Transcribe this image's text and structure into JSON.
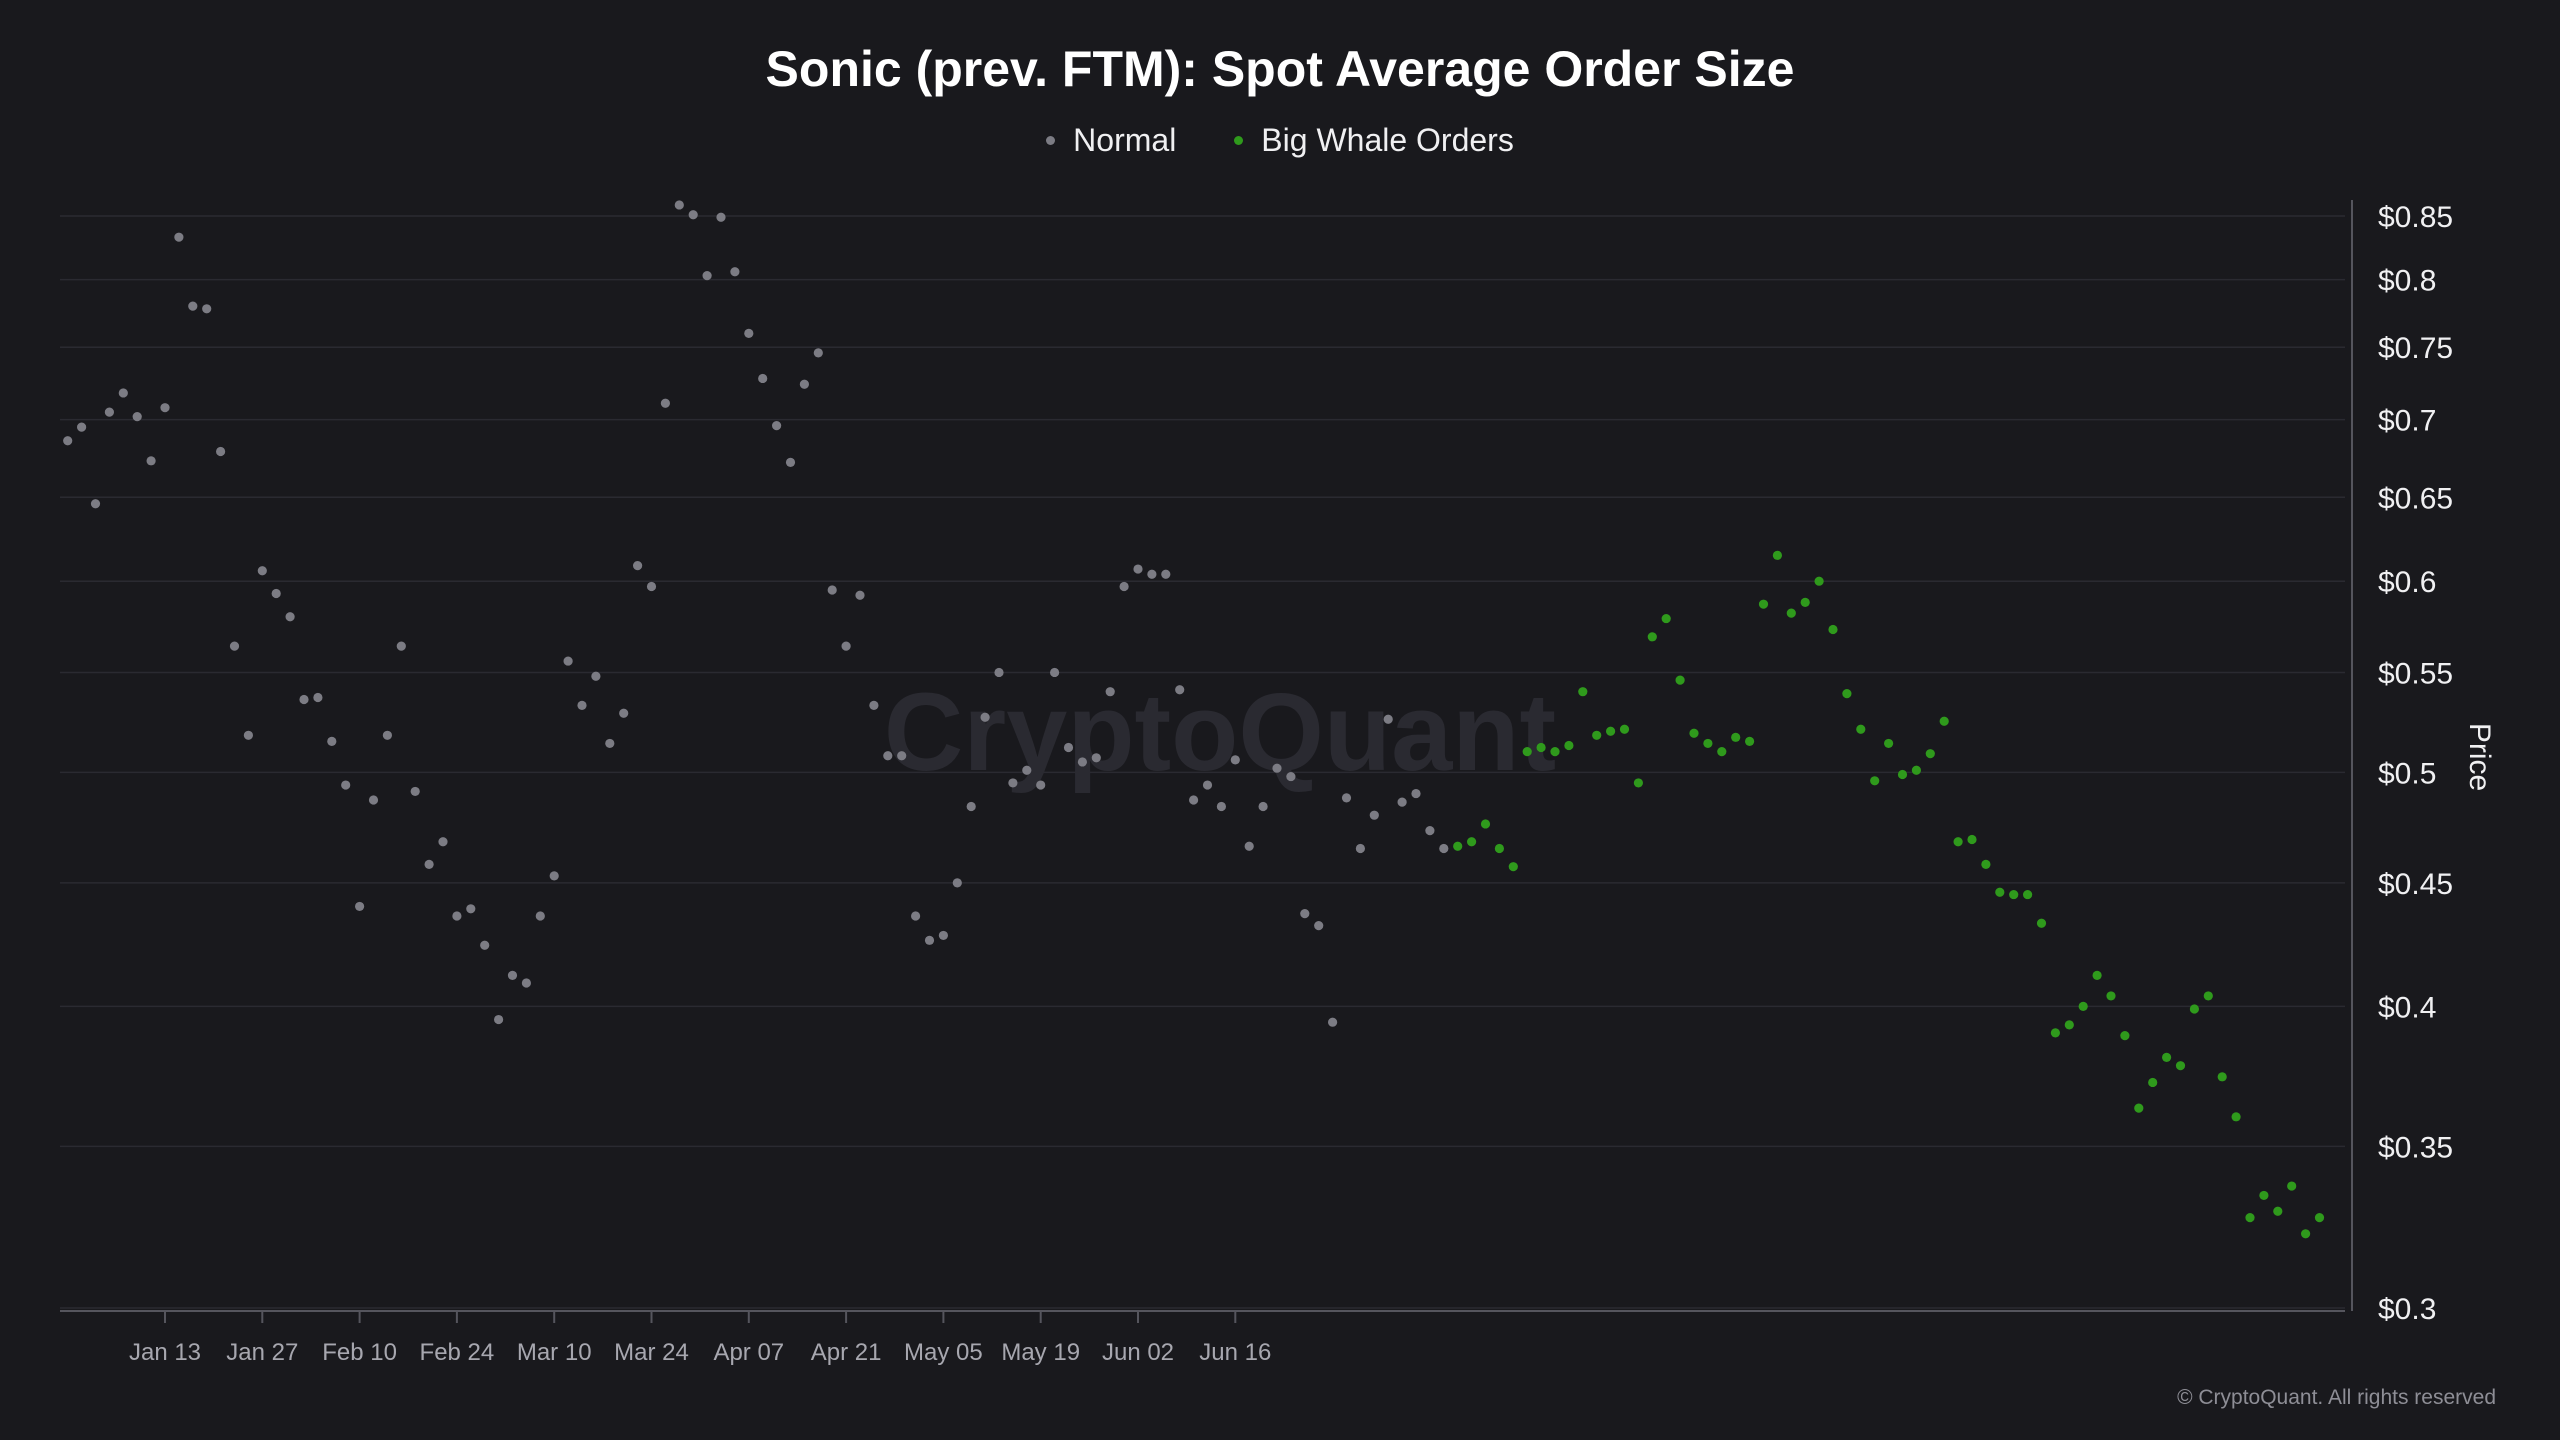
{
  "chart_data": {
    "type": "scatter",
    "title": "Sonic (prev. FTM): Spot Average Order Size",
    "ylabel": "Price",
    "y_scale": "log",
    "ylim": [
      0.3,
      0.86
    ],
    "grid": true,
    "legend_position": "top-center",
    "x_ticks": [
      "Jan 13",
      "Jan 27",
      "Feb 10",
      "Feb 24",
      "Mar 10",
      "Mar 24",
      "Apr 07",
      "Apr 21",
      "May 05",
      "May 19",
      "Jun 02",
      "Jun 16"
    ],
    "y_ticks": [
      {
        "value": 0.85,
        "label": "$0.85"
      },
      {
        "value": 0.8,
        "label": "$0.8"
      },
      {
        "value": 0.75,
        "label": "$0.75"
      },
      {
        "value": 0.7,
        "label": "$0.7"
      },
      {
        "value": 0.65,
        "label": "$0.65"
      },
      {
        "value": 0.6,
        "label": "$0.6"
      },
      {
        "value": 0.55,
        "label": "$0.55"
      },
      {
        "value": 0.5,
        "label": "$0.5"
      },
      {
        "value": 0.45,
        "label": "$0.45"
      },
      {
        "value": 0.4,
        "label": "$0.4"
      },
      {
        "value": 0.35,
        "label": "$0.35"
      },
      {
        "value": 0.3,
        "label": "$0.3"
      }
    ],
    "series": [
      {
        "name": "Normal",
        "color": "#7c7c84",
        "points": [
          [
            "2025-01-06",
            0.686
          ],
          [
            "2025-01-07",
            0.695
          ],
          [
            "2025-01-08",
            0.646
          ],
          [
            "2025-01-09",
            0.705
          ],
          [
            "2025-01-10",
            0.718
          ],
          [
            "2025-01-11",
            0.702
          ],
          [
            "2025-01-12",
            0.673
          ],
          [
            "2025-01-13",
            0.708
          ],
          [
            "2025-01-14",
            0.833
          ],
          [
            "2025-01-15",
            0.78
          ],
          [
            "2025-01-16",
            0.778
          ],
          [
            "2025-01-17",
            0.679
          ],
          [
            "2025-01-18",
            0.564
          ],
          [
            "2025-01-19",
            0.518
          ],
          [
            "2025-01-20",
            0.606
          ],
          [
            "2025-01-21",
            0.593
          ],
          [
            "2025-01-22",
            0.58
          ],
          [
            "2025-01-23",
            0.536
          ],
          [
            "2025-01-24",
            0.537
          ],
          [
            "2025-01-25",
            0.515
          ],
          [
            "2025-01-26",
            0.494
          ],
          [
            "2025-01-27",
            0.44
          ],
          [
            "2025-01-28",
            0.487
          ],
          [
            "2025-01-29",
            0.518
          ],
          [
            "2025-01-30",
            0.564
          ],
          [
            "2025-01-31",
            0.491
          ],
          [
            "2025-02-01",
            0.458
          ],
          [
            "2025-02-02",
            0.468
          ],
          [
            "2025-02-03",
            0.436
          ],
          [
            "2025-02-04",
            0.439
          ],
          [
            "2025-02-05",
            0.424
          ],
          [
            "2025-02-06",
            0.395
          ],
          [
            "2025-02-07",
            0.412
          ],
          [
            "2025-02-08",
            0.409
          ],
          [
            "2025-02-09",
            0.436
          ],
          [
            "2025-02-10",
            0.453
          ],
          [
            "2025-02-11",
            0.556
          ],
          [
            "2025-02-12",
            0.533
          ],
          [
            "2025-02-13",
            0.548
          ],
          [
            "2025-02-14",
            0.514
          ],
          [
            "2025-02-15",
            0.529
          ],
          [
            "2025-02-16",
            0.609
          ],
          [
            "2025-02-17",
            0.597
          ],
          [
            "2025-02-18",
            0.711
          ],
          [
            "2025-02-19",
            0.859
          ],
          [
            "2025-02-20",
            0.851
          ],
          [
            "2025-02-21",
            0.803
          ],
          [
            "2025-02-22",
            0.849
          ],
          [
            "2025-02-23",
            0.806
          ],
          [
            "2025-02-24",
            0.76
          ],
          [
            "2025-02-25",
            0.728
          ],
          [
            "2025-02-26",
            0.696
          ],
          [
            "2025-02-27",
            0.672
          ],
          [
            "2025-02-28",
            0.724
          ],
          [
            "2025-03-01",
            0.746
          ],
          [
            "2025-03-02",
            0.595
          ],
          [
            "2025-03-03",
            0.564
          ],
          [
            "2025-03-04",
            0.592
          ],
          [
            "2025-03-05",
            0.533
          ],
          [
            "2025-03-06",
            0.508
          ],
          [
            "2025-03-07",
            0.508
          ],
          [
            "2025-03-08",
            0.436
          ],
          [
            "2025-03-09",
            0.426
          ],
          [
            "2025-03-10",
            0.428
          ],
          [
            "2025-03-11",
            0.45
          ],
          [
            "2025-03-12",
            0.484
          ],
          [
            "2025-03-13",
            0.527
          ],
          [
            "2025-03-14",
            0.55
          ],
          [
            "2025-03-15",
            0.495
          ],
          [
            "2025-03-16",
            0.501
          ],
          [
            "2025-03-17",
            0.494
          ],
          [
            "2025-03-18",
            0.55
          ],
          [
            "2025-03-19",
            0.512
          ],
          [
            "2025-03-20",
            0.505
          ],
          [
            "2025-03-21",
            0.507
          ],
          [
            "2025-03-22",
            0.54
          ],
          [
            "2025-03-23",
            0.597
          ],
          [
            "2025-03-24",
            0.607
          ],
          [
            "2025-03-25",
            0.604
          ],
          [
            "2025-03-26",
            0.604
          ],
          [
            "2025-03-27",
            0.541
          ],
          [
            "2025-03-28",
            0.487
          ],
          [
            "2025-03-29",
            0.494
          ],
          [
            "2025-03-30",
            0.484
          ],
          [
            "2025-03-31",
            0.506
          ],
          [
            "2025-04-01",
            0.466
          ],
          [
            "2025-04-02",
            0.484
          ],
          [
            "2025-04-03",
            0.502
          ],
          [
            "2025-04-04",
            0.498
          ],
          [
            "2025-04-05",
            0.437
          ],
          [
            "2025-04-06",
            0.432
          ],
          [
            "2025-04-07",
            0.394
          ],
          [
            "2025-04-08",
            0.488
          ],
          [
            "2025-04-09",
            0.465
          ],
          [
            "2025-04-10",
            0.48
          ],
          [
            "2025-04-11",
            0.526
          ],
          [
            "2025-04-12",
            0.486
          ],
          [
            "2025-04-13",
            0.49
          ],
          [
            "2025-04-14",
            0.473
          ],
          [
            "2025-04-15",
            0.465
          ]
        ]
      },
      {
        "name": "Big Whale Orders",
        "color": "#2f9a1c",
        "points": [
          [
            "2025-04-16",
            0.466
          ],
          [
            "2025-04-17",
            0.468
          ],
          [
            "2025-04-18",
            0.476
          ],
          [
            "2025-04-19",
            0.465
          ],
          [
            "2025-04-20",
            0.457
          ],
          [
            "2025-04-21",
            0.51
          ],
          [
            "2025-04-22",
            0.512
          ],
          [
            "2025-04-23",
            0.51
          ],
          [
            "2025-04-24",
            0.513
          ],
          [
            "2025-04-25",
            0.54
          ],
          [
            "2025-04-26",
            0.518
          ],
          [
            "2025-04-27",
            0.52
          ],
          [
            "2025-04-28",
            0.521
          ],
          [
            "2025-04-29",
            0.495
          ],
          [
            "2025-04-30",
            0.569
          ],
          [
            "2025-05-01",
            0.579
          ],
          [
            "2025-05-02",
            0.546
          ],
          [
            "2025-05-03",
            0.519
          ],
          [
            "2025-05-04",
            0.514
          ],
          [
            "2025-05-05",
            0.51
          ],
          [
            "2025-05-06",
            0.517
          ],
          [
            "2025-05-07",
            0.515
          ],
          [
            "2025-05-08",
            0.587
          ],
          [
            "2025-05-09",
            0.615
          ],
          [
            "2025-05-10",
            0.582
          ],
          [
            "2025-05-11",
            0.588
          ],
          [
            "2025-05-12",
            0.6
          ],
          [
            "2025-05-13",
            0.573
          ],
          [
            "2025-05-14",
            0.539
          ],
          [
            "2025-05-15",
            0.521
          ],
          [
            "2025-05-16",
            0.496
          ],
          [
            "2025-05-17",
            0.514
          ],
          [
            "2025-05-18",
            0.499
          ],
          [
            "2025-05-19",
            0.501
          ],
          [
            "2025-05-20",
            0.509
          ],
          [
            "2025-05-21",
            0.525
          ],
          [
            "2025-05-22",
            0.468
          ],
          [
            "2025-05-23",
            0.469
          ],
          [
            "2025-05-24",
            0.458
          ],
          [
            "2025-05-25",
            0.446
          ],
          [
            "2025-05-26",
            0.445
          ],
          [
            "2025-05-27",
            0.445
          ],
          [
            "2025-05-28",
            0.433
          ],
          [
            "2025-05-29",
            0.39
          ],
          [
            "2025-05-30",
            0.393
          ],
          [
            "2025-05-31",
            0.4
          ],
          [
            "2025-06-01",
            0.412
          ],
          [
            "2025-06-02",
            0.404
          ],
          [
            "2025-06-03",
            0.389
          ],
          [
            "2025-06-04",
            0.363
          ],
          [
            "2025-06-05",
            0.372
          ],
          [
            "2025-06-06",
            0.381
          ],
          [
            "2025-06-07",
            0.378
          ],
          [
            "2025-06-08",
            0.399
          ],
          [
            "2025-06-09",
            0.404
          ],
          [
            "2025-06-10",
            0.374
          ],
          [
            "2025-06-11",
            0.36
          ],
          [
            "2025-06-12",
            0.327
          ],
          [
            "2025-06-13",
            0.334
          ],
          [
            "2025-06-14",
            0.329
          ],
          [
            "2025-06-15",
            0.337
          ],
          [
            "2025-06-16",
            0.322
          ],
          [
            "2025-06-17",
            0.327
          ]
        ]
      }
    ]
  },
  "watermark": "CryptoQuant",
  "copyright": "© CryptoQuant. All rights reserved"
}
